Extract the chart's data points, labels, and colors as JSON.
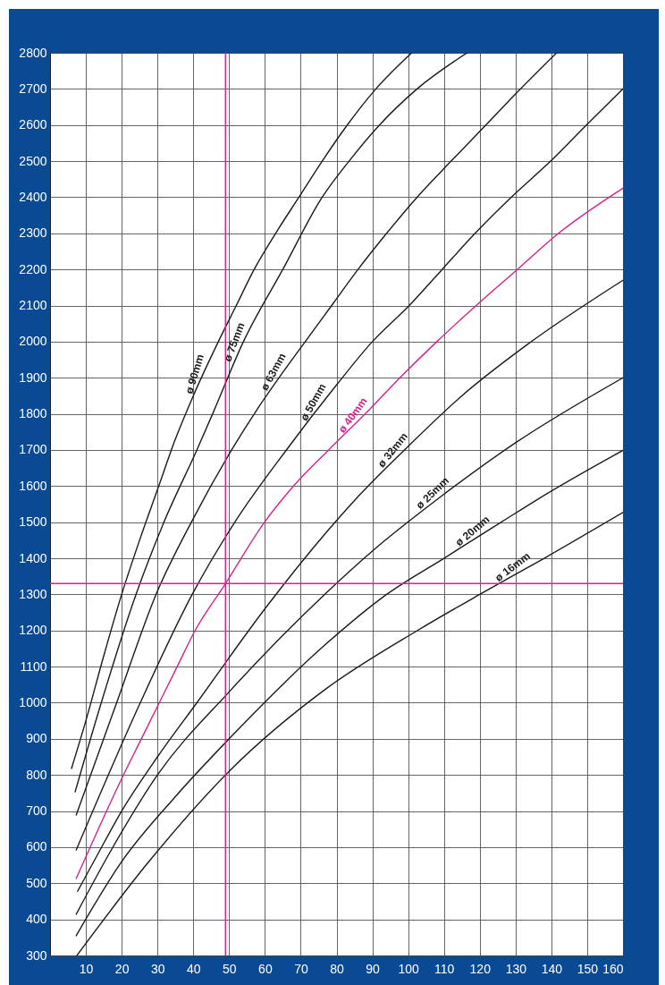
{
  "chart_data": {
    "type": "line",
    "xlim": [
      0,
      160
    ],
    "ylim": [
      300,
      2800
    ],
    "xticks": [
      10,
      20,
      30,
      40,
      50,
      60,
      70,
      80,
      90,
      100,
      110,
      120,
      130,
      140,
      150,
      160
    ],
    "yticks": [
      300,
      400,
      500,
      600,
      700,
      800,
      900,
      1000,
      1100,
      1200,
      1300,
      1400,
      1500,
      1600,
      1700,
      1800,
      1900,
      2000,
      2100,
      2200,
      2300,
      2400,
      2500,
      2600,
      2700,
      2800
    ],
    "grid": true,
    "series": [
      {
        "name": "ø 90mm",
        "color": "#1a1a1a",
        "x": [
          6,
          10,
          15,
          20,
          25,
          30,
          35,
          40,
          47,
          52,
          57,
          63,
          69.5,
          76,
          83,
          91,
          101
        ],
        "values": [
          818,
          950,
          1130,
          1300,
          1450,
          1590,
          1730,
          1850,
          2000,
          2100,
          2200,
          2300,
          2400,
          2500,
          2600,
          2700,
          2800
        ]
      },
      {
        "name": "ø 75mm",
        "color": "#1a1a1a",
        "x": [
          7,
          14.3,
          24,
          31.8,
          41,
          45.4,
          54,
          65,
          76,
          83.5,
          92,
          102.5,
          116.5
        ],
        "values": [
          753,
          1000,
          1300,
          1500,
          1700,
          1800,
          2000,
          2200,
          2400,
          2500,
          2600,
          2700,
          2800
        ]
      },
      {
        "name": "ø 63mm",
        "color": "#1a1a1a",
        "x": [
          7.3,
          18.6,
          29.6,
          40,
          50.7,
          58,
          65,
          72,
          79,
          86,
          94,
          102.5,
          112,
          121.7,
          131.4,
          141.5
        ],
        "values": [
          689,
          1000,
          1300,
          1510,
          1700,
          1815,
          1915,
          2010,
          2105,
          2200,
          2300,
          2400,
          2500,
          2600,
          2700,
          2800
        ]
      },
      {
        "name": "ø 50mm",
        "color": "#1a1a1a",
        "x": [
          7.3,
          25.2,
          39.7,
          51.6,
          66,
          80,
          90,
          100.3,
          109.5,
          118.7,
          128.8,
          139.8,
          149.8,
          160
        ],
        "values": [
          592,
          1000,
          1300,
          1500,
          1700,
          1880,
          2000,
          2100,
          2200,
          2300,
          2400,
          2500,
          2600,
          2700
        ]
      },
      {
        "name": "ø 40mm",
        "color": "#d6228a",
        "x": [
          7.3,
          20.5,
          25.5,
          30.5,
          35.5,
          40.5,
          49,
          59.9,
          68,
          77.8,
          88,
          97.7,
          108,
          119,
          130.5,
          142,
          160
        ],
        "values": [
          513,
          800,
          900,
          1000,
          1100,
          1200,
          1330,
          1500,
          1600,
          1700,
          1800,
          1900,
          2000,
          2100,
          2200,
          2300,
          2425
        ]
      },
      {
        "name": "ø 32mm",
        "color": "#1a1a1a",
        "x": [
          7.7,
          13.3,
          20,
          30,
          41,
          60,
          77,
          85,
          100,
          115,
          133,
          160
        ],
        "values": [
          478,
          580,
          700,
          850,
          1000,
          1260,
          1470,
          1560,
          1710,
          1850,
          1990,
          2170
        ]
      },
      {
        "name": "ø 25mm",
        "color": "#1a1a1a",
        "x": [
          7.3,
          16.4,
          30,
          50,
          77,
          90,
          108.5,
          130,
          160
        ],
        "values": [
          414,
          580,
          800,
          1030,
          1303,
          1420,
          1566,
          1720,
          1900
        ]
      },
      {
        "name": "ø 20mm",
        "color": "#1a1a1a",
        "x": [
          7.3,
          20,
          35,
          50,
          77,
          94,
          110,
          126,
          136.6,
          160
        ],
        "values": [
          355,
          560,
          740,
          900,
          1162,
          1300,
          1400,
          1500,
          1566,
          1699
        ]
      },
      {
        "name": "ø 16mm",
        "color": "#1a1a1a",
        "x": [
          7.5,
          27.6,
          50,
          77,
          102.6,
          120,
          138,
          160
        ],
        "values": [
          300,
          560,
          810,
          1038,
          1200,
          1300,
          1400,
          1527
        ]
      }
    ],
    "ref_lines": [
      {
        "axis": "y",
        "value": 1330,
        "color": "#e0218a"
      },
      {
        "axis": "x",
        "value": 49,
        "color": "#e0218a"
      }
    ]
  }
}
